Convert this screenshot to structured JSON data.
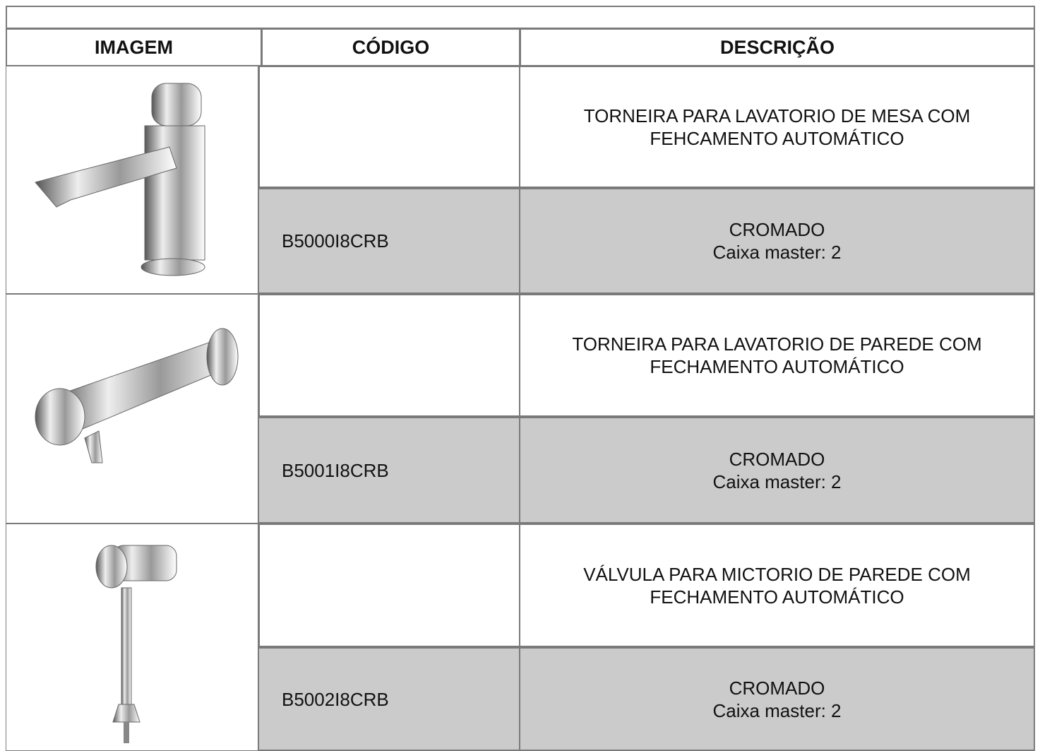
{
  "table": {
    "headers": [
      "IMAGEM",
      "CÓDIGO",
      "DESCRIÇÃO"
    ],
    "rows": [
      {
        "code": "B5000I8CRB",
        "description": [
          "TORNEIRA PARA LAVATORIO DE MESA COM",
          "FEHCAMENTO AUTOMÁTICO"
        ],
        "finish": "CROMADO",
        "box": "Caixa master: 2"
      },
      {
        "code": "B5001I8CRB",
        "description": [
          "TORNEIRA PARA LAVATORIO DE PAREDE COM",
          "FECHAMENTO AUTOMÁTICO"
        ],
        "finish": "CROMADO",
        "box": "Caixa master: 2"
      },
      {
        "code": "B5002I8CRB",
        "description": [
          "VÁLVULA PARA MICTORIO DE PAREDE COM",
          "FECHAMENTO AUTOMÁTICO"
        ],
        "finish": "CROMADO",
        "box": "Caixa master: 2"
      }
    ]
  }
}
